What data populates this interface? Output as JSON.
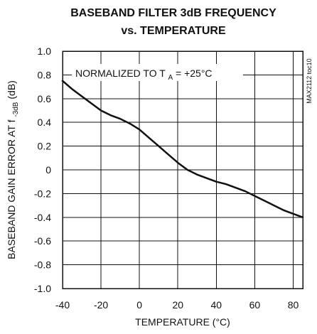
{
  "chart_data": {
    "type": "line",
    "title_lines": [
      "BASEBAND FILTER 3dB FREQUENCY",
      "vs. TEMPERATURE"
    ],
    "xlabel": "TEMPERATURE (°C)",
    "ylabel_prefix": "BASEBAND GAIN ERROR AT f",
    "ylabel_subscript": "-3dB",
    "ylabel_suffix": " (dB)",
    "annotation_prefix": "NORMALIZED TO T",
    "annotation_subscript": "A",
    "annotation_suffix": " = +25°C",
    "side_code": "MAX2112 toc10",
    "xlim": [
      -40,
      85
    ],
    "ylim": [
      -1.0,
      1.0
    ],
    "x_ticks": [
      -40,
      -20,
      0,
      20,
      40,
      60,
      80
    ],
    "x_tick_labels": [
      "-40",
      "-20",
      "0",
      "20",
      "40",
      "60",
      "80"
    ],
    "y_ticks": [
      1.0,
      0.8,
      0.6,
      0.4,
      0.2,
      0,
      -0.2,
      -0.4,
      -0.6,
      -0.8,
      -1.0
    ],
    "y_tick_labels": [
      "1.0",
      "0.8",
      "0.6",
      "0.4",
      "0.2",
      "0",
      "-0.2",
      "-0.4",
      "-0.6",
      "-0.8",
      "-1.0"
    ],
    "grid": true,
    "series": [
      {
        "x": [
          -40,
          -35,
          -30,
          -25,
          -20,
          -15,
          -10,
          -5,
          0,
          5,
          10,
          15,
          20,
          25,
          30,
          35,
          40,
          45,
          50,
          55,
          60,
          65,
          70,
          75,
          80,
          85
        ],
        "y": [
          0.75,
          0.68,
          0.62,
          0.56,
          0.5,
          0.46,
          0.43,
          0.39,
          0.34,
          0.27,
          0.2,
          0.13,
          0.06,
          0.0,
          -0.04,
          -0.07,
          -0.1,
          -0.12,
          -0.15,
          -0.18,
          -0.22,
          -0.26,
          -0.3,
          -0.34,
          -0.37,
          -0.4
        ]
      }
    ]
  }
}
